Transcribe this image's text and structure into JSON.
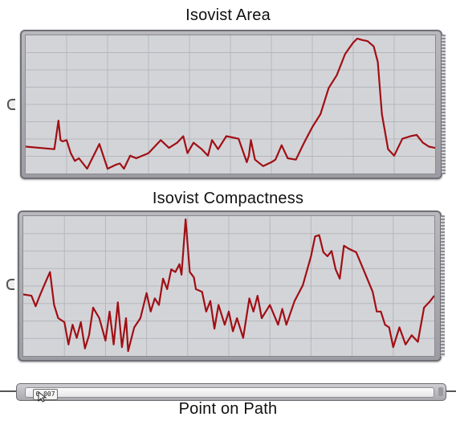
{
  "graphs": [
    {
      "title": "Isovist Area",
      "chart_data": {
        "type": "line",
        "title": "Isovist Area",
        "xlabel": "",
        "ylabel": "",
        "grid": true,
        "xlim": [
          0,
          1
        ],
        "ylim": [
          0,
          1
        ],
        "color": "#a00f14",
        "x": [
          0.0,
          0.07,
          0.08,
          0.085,
          0.09,
          0.1,
          0.11,
          0.12,
          0.13,
          0.15,
          0.18,
          0.2,
          0.22,
          0.23,
          0.24,
          0.255,
          0.27,
          0.3,
          0.33,
          0.35,
          0.37,
          0.385,
          0.395,
          0.41,
          0.43,
          0.445,
          0.455,
          0.47,
          0.49,
          0.52,
          0.54,
          0.545,
          0.55,
          0.56,
          0.58,
          0.6,
          0.61,
          0.625,
          0.64,
          0.66,
          0.68,
          0.7,
          0.72,
          0.74,
          0.76,
          0.78,
          0.8,
          0.81,
          0.82,
          0.835,
          0.85,
          0.86,
          0.87,
          0.885,
          0.9,
          0.92,
          0.94,
          0.955,
          0.97,
          0.985,
          1.0
        ],
        "values": [
          0.17,
          0.15,
          0.37,
          0.22,
          0.21,
          0.22,
          0.12,
          0.06,
          0.08,
          0.0,
          0.19,
          0.0,
          0.03,
          0.04,
          0.0,
          0.1,
          0.08,
          0.12,
          0.22,
          0.16,
          0.2,
          0.25,
          0.12,
          0.2,
          0.15,
          0.1,
          0.22,
          0.15,
          0.25,
          0.23,
          0.05,
          0.1,
          0.22,
          0.07,
          0.02,
          0.05,
          0.07,
          0.18,
          0.08,
          0.07,
          0.2,
          0.32,
          0.42,
          0.62,
          0.72,
          0.88,
          0.97,
          1.0,
          0.99,
          0.98,
          0.94,
          0.82,
          0.42,
          0.15,
          0.1,
          0.23,
          0.25,
          0.26,
          0.2,
          0.17,
          0.16
        ]
      }
    },
    {
      "title": "Isovist Compactness",
      "chart_data": {
        "type": "line",
        "title": "Isovist Compactness",
        "xlabel": "",
        "ylabel": "",
        "grid": true,
        "xlim": [
          0,
          1
        ],
        "ylim": [
          0,
          1
        ],
        "color": "#a00f14",
        "x": [
          0.0,
          0.02,
          0.03,
          0.04,
          0.055,
          0.065,
          0.075,
          0.085,
          0.1,
          0.11,
          0.12,
          0.13,
          0.14,
          0.15,
          0.16,
          0.17,
          0.185,
          0.2,
          0.21,
          0.22,
          0.23,
          0.24,
          0.25,
          0.255,
          0.27,
          0.285,
          0.3,
          0.31,
          0.32,
          0.33,
          0.34,
          0.35,
          0.36,
          0.37,
          0.38,
          0.385,
          0.395,
          0.405,
          0.415,
          0.42,
          0.435,
          0.445,
          0.455,
          0.465,
          0.475,
          0.49,
          0.5,
          0.51,
          0.52,
          0.535,
          0.55,
          0.56,
          0.57,
          0.58,
          0.6,
          0.62,
          0.63,
          0.64,
          0.66,
          0.68,
          0.7,
          0.71,
          0.72,
          0.73,
          0.74,
          0.75,
          0.76,
          0.77,
          0.78,
          0.79,
          0.81,
          0.83,
          0.85,
          0.86,
          0.87,
          0.88,
          0.89,
          0.9,
          0.915,
          0.93,
          0.945,
          0.96,
          0.975,
          0.99,
          1.0
        ],
        "values": [
          0.43,
          0.42,
          0.34,
          0.42,
          0.53,
          0.6,
          0.35,
          0.25,
          0.22,
          0.05,
          0.2,
          0.1,
          0.22,
          0.02,
          0.12,
          0.33,
          0.25,
          0.08,
          0.3,
          0.05,
          0.37,
          0.03,
          0.25,
          0.0,
          0.18,
          0.25,
          0.44,
          0.3,
          0.4,
          0.35,
          0.55,
          0.47,
          0.62,
          0.6,
          0.66,
          0.58,
          1.0,
          0.6,
          0.56,
          0.47,
          0.45,
          0.3,
          0.38,
          0.17,
          0.35,
          0.2,
          0.3,
          0.15,
          0.25,
          0.1,
          0.4,
          0.3,
          0.42,
          0.25,
          0.35,
          0.2,
          0.32,
          0.2,
          0.38,
          0.5,
          0.72,
          0.87,
          0.88,
          0.75,
          0.72,
          0.76,
          0.62,
          0.55,
          0.8,
          0.78,
          0.75,
          0.6,
          0.45,
          0.3,
          0.3,
          0.2,
          0.18,
          0.03,
          0.18,
          0.05,
          0.12,
          0.07,
          0.33,
          0.38,
          0.42
        ]
      }
    }
  ],
  "slider": {
    "caption": "Point on Path",
    "value_text": "0.007",
    "value": 0.007
  }
}
